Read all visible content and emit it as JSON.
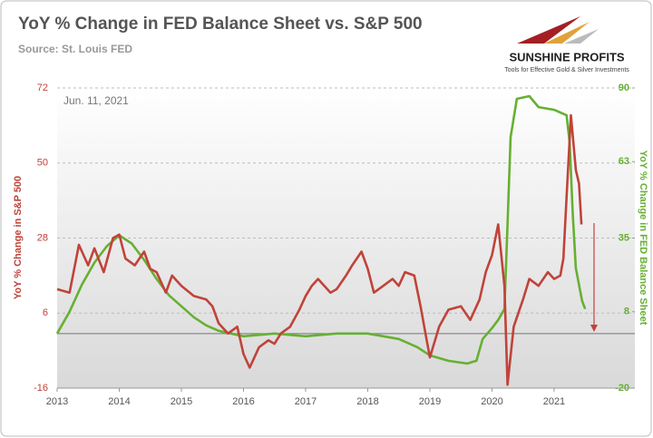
{
  "chart_data": {
    "type": "line",
    "title": "YoY % Change in FED Balance Sheet vs. S&P 500",
    "subtitle": "Source: St. Louis FED",
    "logo": {
      "name": "SUNSHINE PROFITS",
      "tagline": "Tools for Effective Gold & Silver Investments"
    },
    "annotation": "Jun. 11, 2021",
    "ylabel": "YoY % Change in S&P 500",
    "y2label": "YoY % Change in FED Balance Sheet",
    "xlim": [
      2013,
      2022.3
    ],
    "xticks": [
      2013,
      2014,
      2015,
      2016,
      2017,
      2018,
      2019,
      2020,
      2021
    ],
    "ylim": [
      -16,
      72
    ],
    "yticks": [
      -16,
      6,
      28,
      50,
      72
    ],
    "y2lim": [
      -20,
      90
    ],
    "y2ticks": [
      -20,
      8,
      35,
      63,
      90
    ],
    "grid": true,
    "series": [
      {
        "name": "YoY % Change in S&P 500",
        "color": "#c0433a",
        "axis": "y",
        "x": [
          2013.0,
          2013.2,
          2013.35,
          2013.5,
          2013.6,
          2013.75,
          2013.9,
          2014.0,
          2014.1,
          2014.25,
          2014.4,
          2014.5,
          2014.6,
          2014.75,
          2014.85,
          2015.0,
          2015.2,
          2015.4,
          2015.5,
          2015.6,
          2015.75,
          2015.9,
          2016.0,
          2016.1,
          2016.25,
          2016.4,
          2016.5,
          2016.6,
          2016.75,
          2016.9,
          2017.0,
          2017.1,
          2017.2,
          2017.4,
          2017.5,
          2017.65,
          2017.75,
          2017.9,
          2018.0,
          2018.1,
          2018.25,
          2018.4,
          2018.5,
          2018.6,
          2018.75,
          2018.85,
          2018.95,
          2019.0,
          2019.15,
          2019.3,
          2019.5,
          2019.65,
          2019.8,
          2019.9,
          2020.0,
          2020.1,
          2020.2,
          2020.25,
          2020.35,
          2020.5,
          2020.6,
          2020.75,
          2020.9,
          2021.0,
          2021.1,
          2021.15,
          2021.2,
          2021.27,
          2021.35,
          2021.4,
          2021.44
        ],
        "values": [
          13,
          12,
          26,
          20,
          25,
          18,
          28,
          29,
          22,
          20,
          24,
          19,
          18,
          12,
          17,
          14,
          11,
          10,
          8,
          3,
          0,
          2,
          -6,
          -10,
          -4,
          -2,
          -3,
          0,
          2,
          7,
          11,
          14,
          16,
          12,
          13,
          17,
          20,
          24,
          19,
          12,
          14,
          16,
          14,
          18,
          17,
          8,
          -2,
          -7,
          2,
          7,
          8,
          4,
          10,
          18,
          23,
          32,
          14,
          -15,
          2,
          10,
          16,
          14,
          18,
          16,
          17,
          22,
          40,
          64,
          48,
          44,
          32
        ]
      },
      {
        "name": "YoY % Change in FED Balance Sheet",
        "color": "#66b032",
        "axis": "y2",
        "x": [
          2013.0,
          2013.2,
          2013.4,
          2013.6,
          2013.8,
          2014.0,
          2014.2,
          2014.4,
          2014.6,
          2014.8,
          2015.0,
          2015.2,
          2015.4,
          2015.6,
          2015.8,
          2016.0,
          2016.5,
          2017.0,
          2017.5,
          2018.0,
          2018.5,
          2018.8,
          2019.0,
          2019.3,
          2019.6,
          2019.75,
          2019.85,
          2020.0,
          2020.1,
          2020.2,
          2020.25,
          2020.3,
          2020.4,
          2020.6,
          2020.75,
          2021.0,
          2021.2,
          2021.25,
          2021.3,
          2021.35,
          2021.45,
          2021.5
        ],
        "values": [
          0,
          8,
          18,
          26,
          32,
          36,
          33,
          27,
          20,
          14,
          10,
          6,
          3,
          1,
          0,
          -1,
          0,
          -1,
          0,
          0,
          -2,
          -5,
          -8,
          -10,
          -11,
          -10,
          -2,
          2,
          5,
          9,
          40,
          72,
          86,
          87,
          83,
          82,
          80,
          70,
          44,
          24,
          12,
          9
        ]
      }
    ]
  }
}
